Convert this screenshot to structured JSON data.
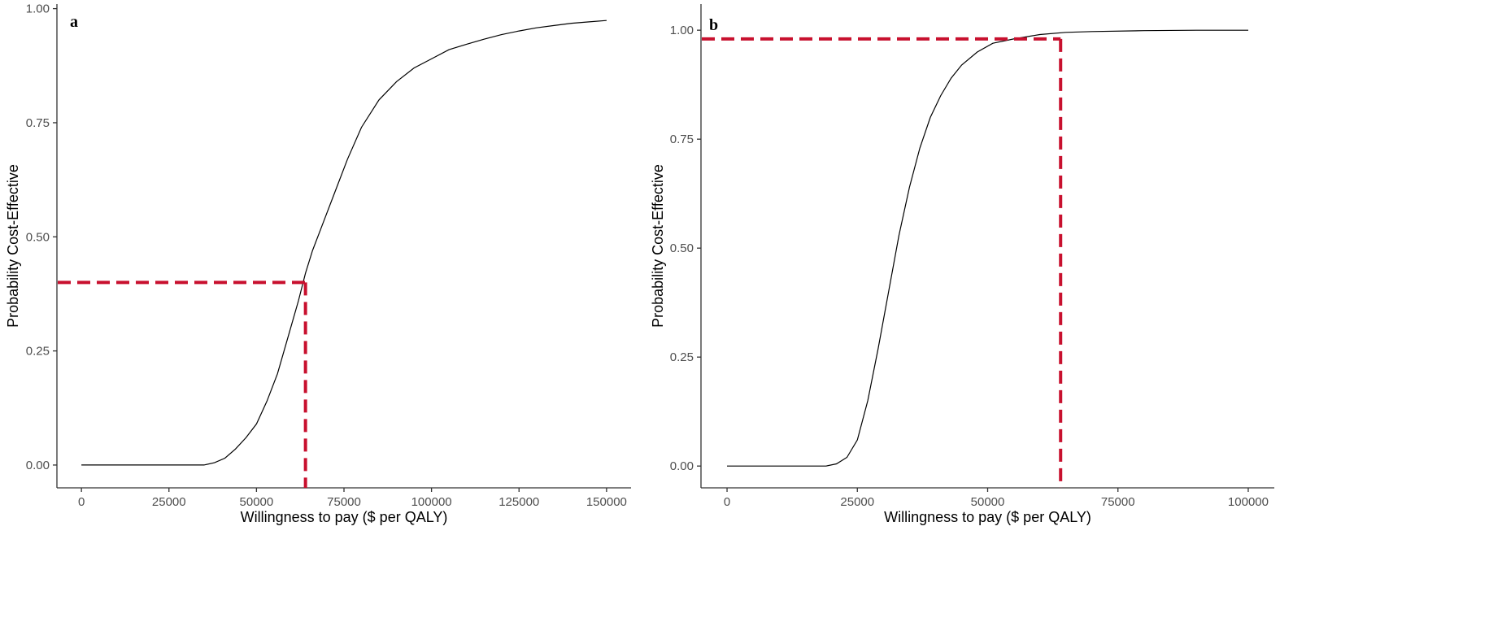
{
  "colors": {
    "curve": "#000000",
    "reference": "#c8102e",
    "axis": "#333333",
    "tick_text": "#4d4d4d"
  },
  "chart_data": [
    {
      "type": "line",
      "panel_label": "a",
      "xlabel": "Willingness to pay ($ per QALY)",
      "ylabel": "Probability Cost-Effective",
      "xlim": [
        -7000,
        157000
      ],
      "ylim": [
        -0.05,
        1.01
      ],
      "xticks": [
        0,
        25000,
        50000,
        75000,
        100000,
        125000,
        150000
      ],
      "xtick_labels": [
        "0",
        "25000",
        "50000",
        "75000",
        "100000",
        "125000",
        "150000"
      ],
      "yticks": [
        0,
        0.25,
        0.5,
        0.75,
        1.0
      ],
      "ytick_labels": [
        "0.00",
        "0.25",
        "0.50",
        "0.75",
        "1.00"
      ],
      "grid": false,
      "series": [
        {
          "x": [
            0,
            10000,
            20000,
            30000,
            35000,
            38000,
            41000,
            44000,
            47000,
            50000,
            53000,
            56000,
            59000,
            62000,
            64000,
            66000,
            68000,
            70000,
            73000,
            76000,
            80000,
            85000,
            90000,
            95000,
            100000,
            105000,
            110000,
            115000,
            120000,
            125000,
            130000,
            135000,
            140000,
            145000,
            150000
          ],
          "y": [
            0,
            0,
            0,
            0,
            0,
            0.005,
            0.015,
            0.035,
            0.06,
            0.09,
            0.14,
            0.2,
            0.28,
            0.36,
            0.42,
            0.47,
            0.51,
            0.55,
            0.61,
            0.67,
            0.74,
            0.8,
            0.84,
            0.87,
            0.89,
            0.91,
            0.922,
            0.933,
            0.943,
            0.951,
            0.958,
            0.963,
            0.968,
            0.971,
            0.974
          ]
        }
      ],
      "reference_lines": {
        "x": 64000,
        "y": 0.4
      }
    },
    {
      "type": "line",
      "panel_label": "b",
      "xlabel": "Willingness to pay ($ per QALY)",
      "ylabel": "Probability Cost-Effective",
      "xlim": [
        -5000,
        105000
      ],
      "ylim": [
        -0.05,
        1.06
      ],
      "xticks": [
        0,
        25000,
        50000,
        75000,
        100000
      ],
      "xtick_labels": [
        "0",
        "25000",
        "50000",
        "75000",
        "100000"
      ],
      "yticks": [
        0,
        0.25,
        0.5,
        0.75,
        1.0
      ],
      "ytick_labels": [
        "0.00",
        "0.25",
        "0.50",
        "0.75",
        "1.00"
      ],
      "grid": false,
      "series": [
        {
          "x": [
            0,
            10000,
            19000,
            21000,
            23000,
            25000,
            27000,
            29000,
            31000,
            33000,
            35000,
            37000,
            39000,
            41000,
            43000,
            45000,
            48000,
            51000,
            55000,
            60000,
            65000,
            70000,
            80000,
            90000,
            100000
          ],
          "y": [
            0,
            0,
            0,
            0.005,
            0.02,
            0.06,
            0.15,
            0.27,
            0.4,
            0.53,
            0.64,
            0.73,
            0.8,
            0.85,
            0.89,
            0.92,
            0.95,
            0.97,
            0.98,
            0.99,
            0.995,
            0.997,
            0.999,
            1.0,
            1.0
          ]
        }
      ],
      "reference_lines": {
        "x": 64000,
        "y": 0.98
      }
    }
  ]
}
